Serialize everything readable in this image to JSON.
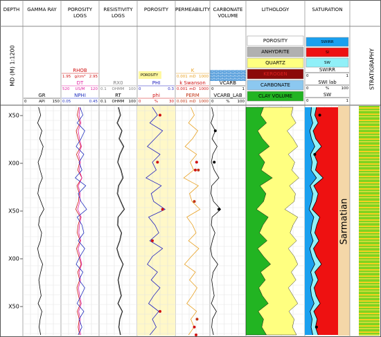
{
  "chart_data": {
    "type": "well-log",
    "depth_track": {
      "title": "DEPTH",
      "scale_label": "MD (M) 1:1200",
      "depth_labels": [
        "X50",
        "X00",
        "X50",
        "X00",
        "X50"
      ]
    },
    "tracks": [
      {
        "title": "GAMMA RAY",
        "curves": [
          {
            "name": "GR",
            "unit": "API",
            "scale": [
              0,
              150
            ],
            "color": "#000000",
            "style": "line",
            "values": [
              62,
              70,
              58,
              75,
              66,
              80,
              72,
              60,
              68,
              77,
              64,
              59,
              71,
              83,
              66,
              62,
              74,
              69,
              58,
              65,
              78,
              70,
              63,
              67,
              72,
              60,
              75,
              68,
              64,
              70
            ]
          }
        ]
      },
      {
        "title": "POROSITY LOGS",
        "curves": [
          {
            "name": "RHOB",
            "unit": "g/cm³",
            "scale": [
              1.95,
              2.95
            ],
            "color": "#d01010",
            "style": "line",
            "values": [
              2.42,
              2.38,
              2.45,
              2.35,
              2.4,
              2.47,
              2.36,
              2.44,
              2.39,
              2.5,
              2.37,
              2.43,
              2.41,
              2.34,
              2.46,
              2.4,
              2.38,
              2.45,
              2.36,
              2.42,
              2.48,
              2.39,
              2.44,
              2.37,
              2.41,
              2.46,
              2.38,
              2.43,
              2.4,
              2.44
            ]
          },
          {
            "name": "DT",
            "unit": "US/M",
            "scale": [
              520,
              120
            ],
            "color": "#e020a0",
            "style": "line",
            "values": [
              320,
              330,
              310,
              340,
              325,
              305,
              335,
              315,
              328,
              300,
              338,
              318,
              322,
              345,
              308,
              326,
              332,
              312,
              340,
              320,
              302,
              330,
              314,
              336,
              324,
              306,
              334,
              316,
              327,
              312
            ]
          },
          {
            "name": "NPHI",
            "scale": [
              0.05,
              0.45
            ],
            "color": "#2030c0",
            "style": "line",
            "values": [
              0.25,
              0.28,
              0.22,
              0.3,
              0.26,
              0.21,
              0.29,
              0.24,
              0.27,
              0.2,
              0.31,
              0.23,
              0.26,
              0.32,
              0.22,
              0.27,
              0.29,
              0.23,
              0.3,
              0.25,
              0.21,
              0.28,
              0.24,
              0.3,
              0.26,
              0.22,
              0.29,
              0.24,
              0.27,
              0.23
            ]
          }
        ]
      },
      {
        "title": "RESISTIVITY LOGS",
        "curves": [
          {
            "name": "RX0",
            "unit": "OHMM",
            "scale": [
              0.1,
              100
            ],
            "log": true,
            "color": "#808080",
            "style": "line",
            "values": [
              3,
              4.5,
              2.5,
              6,
              3.5,
              8,
              4,
              2.8,
              5,
              7,
              3.2,
              2.6,
              4.8,
              9,
              3,
              2.7,
              5.5,
              4,
              2.4,
              3.6,
              7.5,
              4.2,
              3,
              3.8,
              5.2,
              2.9,
              6.5,
              4,
              3.4,
              4.6
            ]
          },
          {
            "name": "RT",
            "unit": "OHMM",
            "scale": [
              0.1,
              100
            ],
            "log": true,
            "color": "#000000",
            "style": "line",
            "values": [
              3.5,
              5,
              2.8,
              6.5,
              4,
              9,
              4.5,
              3,
              5.5,
              8,
              3.6,
              2.9,
              5.2,
              10,
              3.3,
              3,
              6,
              4.4,
              2.6,
              4,
              8,
              4.6,
              3.3,
              4.2,
              5.8,
              3.2,
              7,
              4.4,
              3.7,
              5
            ]
          }
        ]
      },
      {
        "title": "POROSITY",
        "label": "POROSITY",
        "curves": [
          {
            "name": "PHI",
            "scale": [
              0,
              0.3
            ],
            "color": "#2020c0",
            "style": "line",
            "values": [
              0.12,
              0.16,
              0.1,
              0.2,
              0.14,
              0.08,
              0.18,
              0.12,
              0.15,
              0.07,
              0.19,
              0.11,
              0.13,
              0.22,
              0.09,
              0.14,
              0.17,
              0.1,
              0.2,
              0.12,
              0.08,
              0.16,
              0.11,
              0.18,
              0.13,
              0.09,
              0.17,
              0.12,
              0.15,
              0.1
            ]
          },
          {
            "name": "phi",
            "unit": "%",
            "scale": [
              0,
              30
            ],
            "color": "#d01010",
            "style": "points",
            "values": [
              null,
              18,
              null,
              null,
              null,
              null,
              null,
              16,
              null,
              null,
              null,
              null,
              null,
              20,
              null,
              null,
              null,
              12,
              null,
              null,
              null,
              null,
              null,
              null,
              null,
              null,
              18,
              null,
              null,
              null
            ]
          }
        ]
      },
      {
        "title": "PERMEABILITY",
        "curves": [
          {
            "name": "K",
            "unit": "mD",
            "scale": [
              0.001,
              1000
            ],
            "log": true,
            "color": "#e8a020",
            "style": "line",
            "values": [
              0.5,
              2,
              0.2,
              8,
              1,
              0.05,
              5,
              0.4,
              1.5,
              0.03,
              10,
              0.3,
              0.8,
              20,
              0.1,
              1,
              4,
              0.2,
              12,
              0.6,
              0.04,
              3,
              0.3,
              6,
              0.9,
              0.1,
              5,
              0.5,
              1.8,
              0.2
            ]
          },
          {
            "name": "k Swanson",
            "unit": "mD",
            "scale": [
              0.001,
              1000
            ],
            "log": true,
            "color": "#d01010",
            "style": "points",
            "values": [
              null,
              null,
              null,
              null,
              null,
              null,
              null,
              5,
              3,
              null,
              null,
              null,
              null,
              null,
              null,
              null,
              null,
              null,
              null,
              null,
              null,
              null,
              null,
              null,
              null,
              null,
              null,
              null,
              2,
              4
            ]
          },
          {
            "name": "PERM",
            "unit": "mD",
            "scale": [
              0.001,
              1000
            ],
            "log": true,
            "color": "#c03010",
            "style": "points",
            "values": [
              null,
              null,
              null,
              null,
              null,
              null,
              null,
              null,
              10,
              null,
              null,
              null,
              2,
              null,
              null,
              null,
              null,
              null,
              null,
              null,
              null,
              null,
              null,
              null,
              null,
              null,
              null,
              6,
              null,
              null
            ]
          }
        ]
      },
      {
        "title": "CARBONATE VOLUME",
        "curves": [
          {
            "name": "VCARB",
            "scale": [
              0,
              1
            ],
            "color": "#000000",
            "style": "line",
            "values": [
              0.05,
              0.1,
              0.03,
              0.15,
              0.06,
              0.2,
              0.08,
              0.04,
              0.12,
              0.25,
              0.05,
              0.03,
              0.1,
              0.3,
              0.06,
              0.04,
              0.14,
              0.07,
              0.02,
              0.06,
              0.22,
              0.09,
              0.05,
              0.08,
              0.12,
              0.04,
              0.18,
              0.07,
              0.05,
              0.1
            ]
          },
          {
            "name": "VCARB_LAB",
            "unit": "%",
            "scale": [
              0,
              100
            ],
            "color": "#000000",
            "style": "points",
            "values": [
              null,
              null,
              null,
              15,
              null,
              null,
              null,
              12,
              null,
              null,
              null,
              null,
              null,
              25,
              null,
              null,
              null,
              null,
              null,
              null,
              null,
              null,
              null,
              null,
              null,
              null,
              null,
              null,
              null,
              null
            ]
          }
        ]
      },
      {
        "title": "LITHOLOGY",
        "legend": [
          {
            "name": "POROSITY",
            "color": "#ffffff"
          },
          {
            "name": "ANHYDRITE",
            "color": "#b0b0b0"
          },
          {
            "name": "QUARTZ",
            "color": "#ffff80",
            "values": [
              0.5,
              0.52,
              0.5,
              0.5,
              0.52,
              0.48,
              0.5,
              0.51,
              0.52,
              0.45,
              0.5,
              0.5,
              0.52,
              0.48,
              0.5,
              0.51,
              0.52,
              0.5,
              0.52,
              0.52,
              0.46,
              0.52,
              0.52,
              0.5,
              0.52,
              0.5,
              0.52,
              0.52,
              0.52,
              0.51
            ]
          },
          {
            "name": "KEROGEN",
            "color": "#8b0a0a"
          },
          {
            "name": "CARBONATE",
            "color": "#8cc8f0"
          },
          {
            "name": "CLAY VOLUME",
            "color": "#22b422",
            "values": [
              0.3,
              0.25,
              0.35,
              0.2,
              0.28,
              0.4,
              0.22,
              0.32,
              0.26,
              0.45,
              0.24,
              0.34,
              0.3,
              0.18,
              0.38,
              0.29,
              0.23,
              0.36,
              0.2,
              0.3,
              0.42,
              0.25,
              0.33,
              0.22,
              0.28,
              0.38,
              0.21,
              0.3,
              0.27,
              0.35
            ]
          }
        ]
      },
      {
        "title": "SATURATION",
        "legend": [
          {
            "name": "SWIRR",
            "color": "#1aa0ef"
          },
          {
            "name": "SI",
            "color": "#ee1111"
          },
          {
            "name": "SW",
            "color": "#90f0f8"
          }
        ],
        "curves": [
          {
            "name": "SWIRR",
            "scale": [
              0,
              1
            ],
            "color": "#000000",
            "style": "line",
            "values": [
              0.2,
              0.18,
              0.24,
              0.15,
              0.2,
              0.3,
              0.17,
              0.22,
              0.19,
              0.35,
              0.16,
              0.24,
              0.2,
              0.13,
              0.27,
              0.21,
              0.18,
              0.25,
              0.15,
              0.21,
              0.3,
              0.18,
              0.24,
              0.17,
              0.2,
              0.28,
              0.16,
              0.22,
              0.19,
              0.24
            ]
          },
          {
            "name": "SWI lab",
            "unit": "%",
            "scale": [
              0,
              100
            ],
            "color": "#000000",
            "style": "points",
            "values": [
              null,
              45,
              null,
              null,
              null,
              null,
              30,
              null,
              null,
              null,
              null,
              null,
              null,
              null,
              null,
              null,
              null,
              null,
              null,
              null,
              null,
              null,
              null,
              null,
              null,
              null,
              null,
              null,
              35,
              null
            ]
          },
          {
            "name": "SW",
            "scale": [
              0,
              1
            ],
            "color": "#000000",
            "style": "line",
            "values": [
              0.35,
              0.3,
              0.4,
              0.25,
              0.33,
              0.5,
              0.28,
              0.38,
              0.32,
              0.55,
              0.27,
              0.4,
              0.34,
              0.22,
              0.45,
              0.36,
              0.3,
              0.42,
              0.26,
              0.35,
              0.5,
              0.3,
              0.4,
              0.28,
              0.34,
              0.46,
              0.27,
              0.37,
              0.32,
              0.4
            ]
          }
        ]
      }
    ],
    "stratigraphy": {
      "title": "STRATIGRAPHY",
      "unit": "Sarmatian"
    }
  }
}
